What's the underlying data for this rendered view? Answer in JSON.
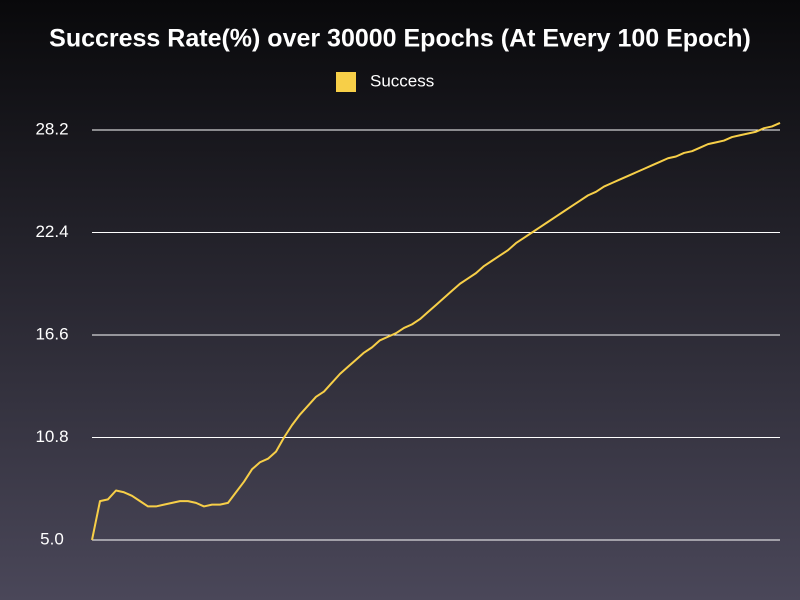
{
  "chart_data": {
    "type": "line",
    "title": "Succress Rate(%) over 30000 Epochs (At Every 100 Epoch)",
    "series": [
      {
        "name": "Success",
        "color": "#f7cf48",
        "values": [
          5.0,
          7.2,
          7.3,
          7.8,
          7.7,
          7.5,
          7.2,
          6.9,
          6.9,
          7.0,
          7.1,
          7.2,
          7.2,
          7.1,
          6.9,
          7.0,
          7.0,
          7.1,
          7.7,
          8.3,
          9.0,
          9.4,
          9.6,
          10.0,
          10.8,
          11.5,
          12.1,
          12.6,
          13.1,
          13.4,
          13.9,
          14.4,
          14.8,
          15.2,
          15.6,
          15.9,
          16.3,
          16.5,
          16.7,
          17.0,
          17.2,
          17.5,
          17.9,
          18.3,
          18.7,
          19.1,
          19.5,
          19.8,
          20.1,
          20.5,
          20.8,
          21.1,
          21.4,
          21.8,
          22.1,
          22.4,
          22.7,
          23.0,
          23.3,
          23.6,
          23.9,
          24.2,
          24.5,
          24.7,
          25.0,
          25.2,
          25.4,
          25.6,
          25.8,
          26.0,
          26.2,
          26.4,
          26.6,
          26.7,
          26.9,
          27.0,
          27.2,
          27.4,
          27.5,
          27.6,
          27.8,
          27.9,
          28.0,
          28.1,
          28.3,
          28.4,
          28.6
        ]
      }
    ],
    "ylim": [
      5,
      29.5
    ],
    "yticks": [
      {
        "value": 5,
        "label": "5.0"
      },
      10.8,
      16.6,
      22.4,
      28.2
    ],
    "grid": true
  }
}
